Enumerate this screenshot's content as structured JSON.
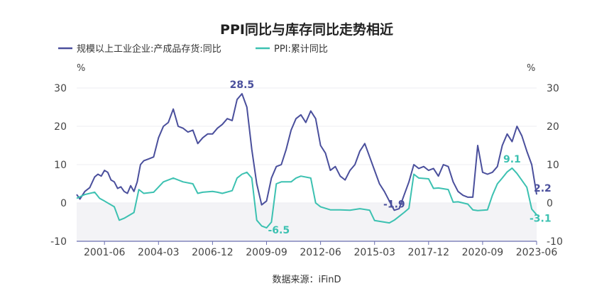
{
  "chart_data": {
    "type": "line",
    "title": "PPI同比与库存同比走势相近",
    "source": "数据来源：iFinD",
    "y_unit_left": "%",
    "y_unit_right": "%",
    "ylim": [
      -10,
      30
    ],
    "yticks": [
      -10,
      0,
      10,
      20,
      30
    ],
    "xlim": [
      "2000-01",
      "2023-06"
    ],
    "xticks": [
      "2001-06",
      "2004-03",
      "2006-12",
      "2009-09",
      "2012-06",
      "2015-03",
      "2017-12",
      "2020-09",
      "2023-06"
    ],
    "grid": true,
    "legend_position": "top-left",
    "series": [
      {
        "name": "规模以上工业企业:产成品存货:同比",
        "color": "#4a4f9c",
        "points": [
          [
            "2000-01",
            2.2
          ],
          [
            "2000-03",
            1.0
          ],
          [
            "2000-06",
            3.0
          ],
          [
            "2000-09",
            4.0
          ],
          [
            "2000-12",
            6.8
          ],
          [
            "2001-02",
            7.5
          ],
          [
            "2001-04",
            7.0
          ],
          [
            "2001-06",
            8.5
          ],
          [
            "2001-08",
            8.0
          ],
          [
            "2001-10",
            6.0
          ],
          [
            "2001-12",
            5.5
          ],
          [
            "2002-02",
            3.8
          ],
          [
            "2002-04",
            4.2
          ],
          [
            "2002-06",
            3.0
          ],
          [
            "2002-08",
            2.5
          ],
          [
            "2002-10",
            4.5
          ],
          [
            "2002-12",
            3.0
          ],
          [
            "2003-02",
            5.5
          ],
          [
            "2003-04",
            10.0
          ],
          [
            "2003-06",
            11.0
          ],
          [
            "2003-09",
            11.5
          ],
          [
            "2003-12",
            12.0
          ],
          [
            "2004-03",
            17.0
          ],
          [
            "2004-06",
            20.0
          ],
          [
            "2004-09",
            21.0
          ],
          [
            "2004-12",
            24.5
          ],
          [
            "2005-03",
            20.0
          ],
          [
            "2005-06",
            19.5
          ],
          [
            "2005-09",
            18.5
          ],
          [
            "2005-12",
            19.0
          ],
          [
            "2006-03",
            15.5
          ],
          [
            "2006-06",
            17.0
          ],
          [
            "2006-09",
            18.0
          ],
          [
            "2006-12",
            18.0
          ],
          [
            "2007-03",
            19.5
          ],
          [
            "2007-06",
            20.5
          ],
          [
            "2007-09",
            22.0
          ],
          [
            "2007-12",
            21.5
          ],
          [
            "2008-03",
            27.0
          ],
          [
            "2008-06",
            28.5
          ],
          [
            "2008-09",
            25.0
          ],
          [
            "2008-12",
            14.0
          ],
          [
            "2009-03",
            5.0
          ],
          [
            "2009-06",
            -0.5
          ],
          [
            "2009-09",
            0.5
          ],
          [
            "2009-12",
            6.5
          ],
          [
            "2010-03",
            9.5
          ],
          [
            "2010-06",
            10.0
          ],
          [
            "2010-09",
            14.0
          ],
          [
            "2010-12",
            19.0
          ],
          [
            "2011-03",
            22.0
          ],
          [
            "2011-06",
            23.0
          ],
          [
            "2011-09",
            21.0
          ],
          [
            "2011-12",
            24.0
          ],
          [
            "2012-03",
            22.0
          ],
          [
            "2012-06",
            15.0
          ],
          [
            "2012-09",
            13.0
          ],
          [
            "2012-12",
            8.5
          ],
          [
            "2013-03",
            9.5
          ],
          [
            "2013-06",
            7.0
          ],
          [
            "2013-09",
            6.0
          ],
          [
            "2013-12",
            8.5
          ],
          [
            "2014-03",
            10.0
          ],
          [
            "2014-06",
            13.5
          ],
          [
            "2014-09",
            15.5
          ],
          [
            "2014-12",
            12.0
          ],
          [
            "2015-03",
            8.5
          ],
          [
            "2015-06",
            5.0
          ],
          [
            "2015-09",
            3.0
          ],
          [
            "2015-12",
            0.5
          ],
          [
            "2016-03",
            -1.9
          ],
          [
            "2016-06",
            -1.5
          ],
          [
            "2016-09",
            2.0
          ],
          [
            "2016-12",
            5.5
          ],
          [
            "2017-03",
            10.0
          ],
          [
            "2017-06",
            9.0
          ],
          [
            "2017-09",
            9.5
          ],
          [
            "2017-12",
            8.5
          ],
          [
            "2018-03",
            9.0
          ],
          [
            "2018-06",
            7.0
          ],
          [
            "2018-09",
            10.0
          ],
          [
            "2018-12",
            9.5
          ],
          [
            "2019-03",
            5.5
          ],
          [
            "2019-06",
            3.0
          ],
          [
            "2019-09",
            2.0
          ],
          [
            "2019-12",
            1.5
          ],
          [
            "2020-03",
            1.5
          ],
          [
            "2020-06",
            15.0
          ],
          [
            "2020-09",
            8.0
          ],
          [
            "2020-12",
            7.5
          ],
          [
            "2021-03",
            8.0
          ],
          [
            "2021-06",
            9.5
          ],
          [
            "2021-09",
            15.0
          ],
          [
            "2021-12",
            18.0
          ],
          [
            "2022-03",
            16.0
          ],
          [
            "2022-06",
            20.0
          ],
          [
            "2022-09",
            17.5
          ],
          [
            "2022-12",
            13.5
          ],
          [
            "2023-03",
            10.0
          ],
          [
            "2023-06",
            2.2
          ]
        ]
      },
      {
        "name": "PPI:累计同比",
        "color": "#3cc1b1",
        "points": [
          [
            "2000-01",
            1.2
          ],
          [
            "2000-06",
            2.2
          ],
          [
            "2000-12",
            2.8
          ],
          [
            "2001-03",
            1.2
          ],
          [
            "2001-06",
            0.5
          ],
          [
            "2001-12",
            -1.0
          ],
          [
            "2002-03",
            -4.5
          ],
          [
            "2002-06",
            -4.0
          ],
          [
            "2002-12",
            -2.5
          ],
          [
            "2003-03",
            3.5
          ],
          [
            "2003-06",
            2.5
          ],
          [
            "2003-12",
            2.8
          ],
          [
            "2004-06",
            5.5
          ],
          [
            "2004-12",
            6.5
          ],
          [
            "2005-06",
            5.5
          ],
          [
            "2005-12",
            5.0
          ],
          [
            "2006-03",
            2.5
          ],
          [
            "2006-06",
            2.8
          ],
          [
            "2006-12",
            3.0
          ],
          [
            "2007-03",
            2.8
          ],
          [
            "2007-06",
            2.5
          ],
          [
            "2007-12",
            3.2
          ],
          [
            "2008-03",
            6.5
          ],
          [
            "2008-06",
            7.5
          ],
          [
            "2008-09",
            8.0
          ],
          [
            "2008-12",
            6.5
          ],
          [
            "2009-03",
            -4.5
          ],
          [
            "2009-06",
            -6.0
          ],
          [
            "2009-09",
            -6.5
          ],
          [
            "2009-12",
            -5.0
          ],
          [
            "2010-03",
            5.0
          ],
          [
            "2010-06",
            5.5
          ],
          [
            "2010-12",
            5.5
          ],
          [
            "2011-03",
            6.5
          ],
          [
            "2011-06",
            7.0
          ],
          [
            "2011-12",
            6.5
          ],
          [
            "2012-03",
            0.0
          ],
          [
            "2012-06",
            -1.0
          ],
          [
            "2012-12",
            -1.8
          ],
          [
            "2013-06",
            -1.8
          ],
          [
            "2013-12",
            -1.9
          ],
          [
            "2014-06",
            -1.5
          ],
          [
            "2014-12",
            -1.9
          ],
          [
            "2015-03",
            -4.6
          ],
          [
            "2015-06",
            -4.8
          ],
          [
            "2015-12",
            -5.2
          ],
          [
            "2016-03",
            -4.5
          ],
          [
            "2016-06",
            -3.5
          ],
          [
            "2016-09",
            -2.5
          ],
          [
            "2016-12",
            -1.4
          ],
          [
            "2017-03",
            7.5
          ],
          [
            "2017-06",
            6.5
          ],
          [
            "2017-12",
            6.3
          ],
          [
            "2018-03",
            3.8
          ],
          [
            "2018-06",
            3.9
          ],
          [
            "2018-12",
            3.5
          ],
          [
            "2019-03",
            0.2
          ],
          [
            "2019-06",
            0.3
          ],
          [
            "2019-12",
            -0.3
          ],
          [
            "2020-03",
            -1.8
          ],
          [
            "2020-06",
            -2.0
          ],
          [
            "2020-12",
            -1.8
          ],
          [
            "2021-03",
            2.0
          ],
          [
            "2021-06",
            5.0
          ],
          [
            "2021-09",
            6.5
          ],
          [
            "2021-12",
            8.1
          ],
          [
            "2022-03",
            9.1
          ],
          [
            "2022-06",
            7.7
          ],
          [
            "2022-09",
            5.9
          ],
          [
            "2022-12",
            4.1
          ],
          [
            "2023-03",
            -1.6
          ],
          [
            "2023-06",
            -3.1
          ]
        ]
      }
    ],
    "annotations": [
      {
        "text": "28.5",
        "series": 0,
        "x": "2008-06",
        "y": 28.5
      },
      {
        "text": "-6.5",
        "series": 1,
        "x": "2009-09",
        "y": -6.5
      },
      {
        "text": "-1.9",
        "series": 0,
        "x": "2016-03",
        "y": -1.9
      },
      {
        "text": "9.1",
        "series": 1,
        "x": "2022-03",
        "y": 9.1
      },
      {
        "text": "2.2",
        "series": 0,
        "x": "2023-06",
        "y": 2.2
      },
      {
        "text": "-3.1",
        "series": 1,
        "x": "2023-06",
        "y": -3.1
      }
    ],
    "colors": {
      "axis": "#c8cad0",
      "grid": "#eceef1",
      "negative_band": "#f3f3f6",
      "text": "#333333",
      "tick": "#444444"
    }
  }
}
